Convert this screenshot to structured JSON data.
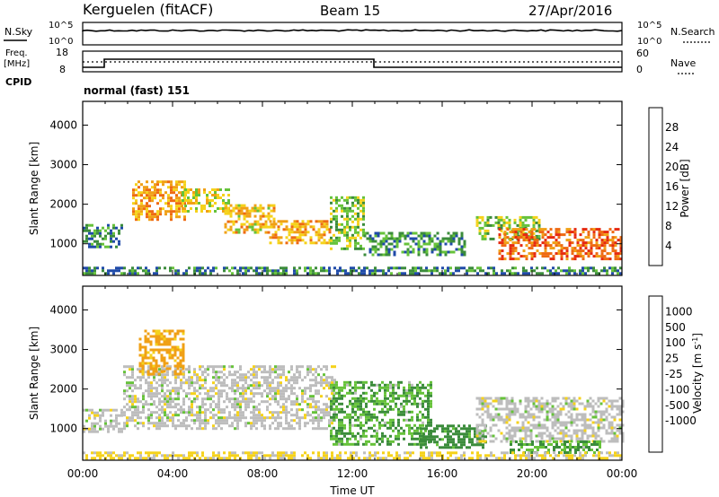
{
  "header": {
    "title": "Kerguelen (fitACF)",
    "beam": "Beam 15",
    "date": "27/Apr/2016"
  },
  "status_panels": {
    "nsky_label": "N.Sky",
    "nsearch_label": "N.Search",
    "left_ticks_top": [
      "10^5",
      "10^0"
    ],
    "right_ticks_top": [
      "10^5",
      "10^0"
    ],
    "freq_label_1": "Freq.",
    "freq_label_2": "[MHz]",
    "nave_label": "Nave",
    "freq_ticks": [
      "18",
      "8"
    ],
    "nave_ticks": [
      "60",
      "0"
    ],
    "cpid_label": "CPID",
    "cpid_text": "normal (fast) 151"
  },
  "colors": {
    "power_scale": [
      "#0a23f0",
      "#1f4aa8",
      "#3b8c3b",
      "#66c23a",
      "#f5d21b",
      "#f0a016",
      "#ee6a12",
      "#e62a10"
    ],
    "velocity_scale": [
      "#e81010",
      "#ee6a12",
      "#f0a016",
      "#f5d21b",
      "#bdbdbd",
      "#bdbdbd",
      "#66c23a",
      "#3b8c3b",
      "#2f7a72",
      "#1f4aa8"
    ],
    "ground_scatter": "#bdbdbd"
  },
  "chart_data": [
    {
      "type": "heatmap",
      "name": "power",
      "ylabel": "Slant Range [km]",
      "ylim": [
        200,
        4600
      ],
      "yticks": [
        "1000",
        "2000",
        "3000",
        "4000"
      ],
      "x_range_hours": [
        0,
        24
      ],
      "colorbar_label": "Power [dB]",
      "colorbar_ticks": [
        "4",
        "8",
        "12",
        "16",
        "20",
        "24",
        "28"
      ],
      "colorbar_range": [
        0,
        32
      ],
      "echo_regions": [
        {
          "t0": 0.0,
          "t1": 1.8,
          "r0": 950,
          "r1": 1500,
          "db": 10
        },
        {
          "t0": 2.2,
          "t1": 4.6,
          "r0": 1600,
          "r1": 2600,
          "db": 22
        },
        {
          "t0": 4.4,
          "t1": 6.5,
          "r0": 1800,
          "r1": 2400,
          "db": 18
        },
        {
          "t0": 6.3,
          "t1": 8.5,
          "r0": 1300,
          "r1": 2000,
          "db": 20
        },
        {
          "t0": 8.3,
          "t1": 11.0,
          "r0": 1000,
          "r1": 1600,
          "db": 21
        },
        {
          "t0": 11.0,
          "t1": 12.5,
          "r0": 900,
          "r1": 2200,
          "db": 14
        },
        {
          "t0": 12.5,
          "t1": 17.0,
          "r0": 700,
          "r1": 1300,
          "db": 10
        },
        {
          "t0": 17.5,
          "t1": 20.3,
          "r0": 1100,
          "r1": 1700,
          "db": 14
        },
        {
          "t0": 18.5,
          "t1": 24.0,
          "r0": 650,
          "r1": 1400,
          "db": 26
        },
        {
          "t0": 0.0,
          "t1": 24.0,
          "r0": 250,
          "r1": 420,
          "db": 9
        }
      ]
    },
    {
      "type": "heatmap",
      "name": "velocity",
      "ylabel": "Slant Range [km]",
      "ylim": [
        200,
        4600
      ],
      "yticks": [
        "1000",
        "2000",
        "3000",
        "4000"
      ],
      "x_range_hours": [
        0,
        24
      ],
      "xlabel": "Time UT",
      "xticks": [
        "00:00",
        "04:00",
        "08:00",
        "12:00",
        "16:00",
        "20:00",
        "00:00"
      ],
      "colorbar_label": "Velocity [m s^-1]",
      "colorbar_ticks": [
        "1000",
        "500",
        "100",
        "25",
        "-25",
        "-100",
        "-500",
        "-1000"
      ],
      "echo_regions": [
        {
          "t0": 0.0,
          "t1": 1.8,
          "r0": 950,
          "r1": 1500,
          "v": 0
        },
        {
          "t0": 1.8,
          "t1": 11.2,
          "r0": 1000,
          "r1": 2600,
          "v": 0
        },
        {
          "t0": 2.5,
          "t1": 4.5,
          "r0": 2400,
          "r1": 3500,
          "v": -200
        },
        {
          "t0": 11.0,
          "t1": 15.5,
          "r0": 600,
          "r1": 2200,
          "v": 100
        },
        {
          "t0": 15.0,
          "t1": 18.0,
          "r0": 500,
          "r1": 1100,
          "v": 200
        },
        {
          "t0": 17.5,
          "t1": 24.0,
          "r0": 700,
          "r1": 1800,
          "v": 0
        },
        {
          "t0": 19.0,
          "t1": 23.0,
          "r0": 400,
          "r1": 700,
          "v": 100
        },
        {
          "t0": 0.0,
          "t1": 24.0,
          "r0": 250,
          "r1": 420,
          "v": -40
        }
      ]
    }
  ]
}
